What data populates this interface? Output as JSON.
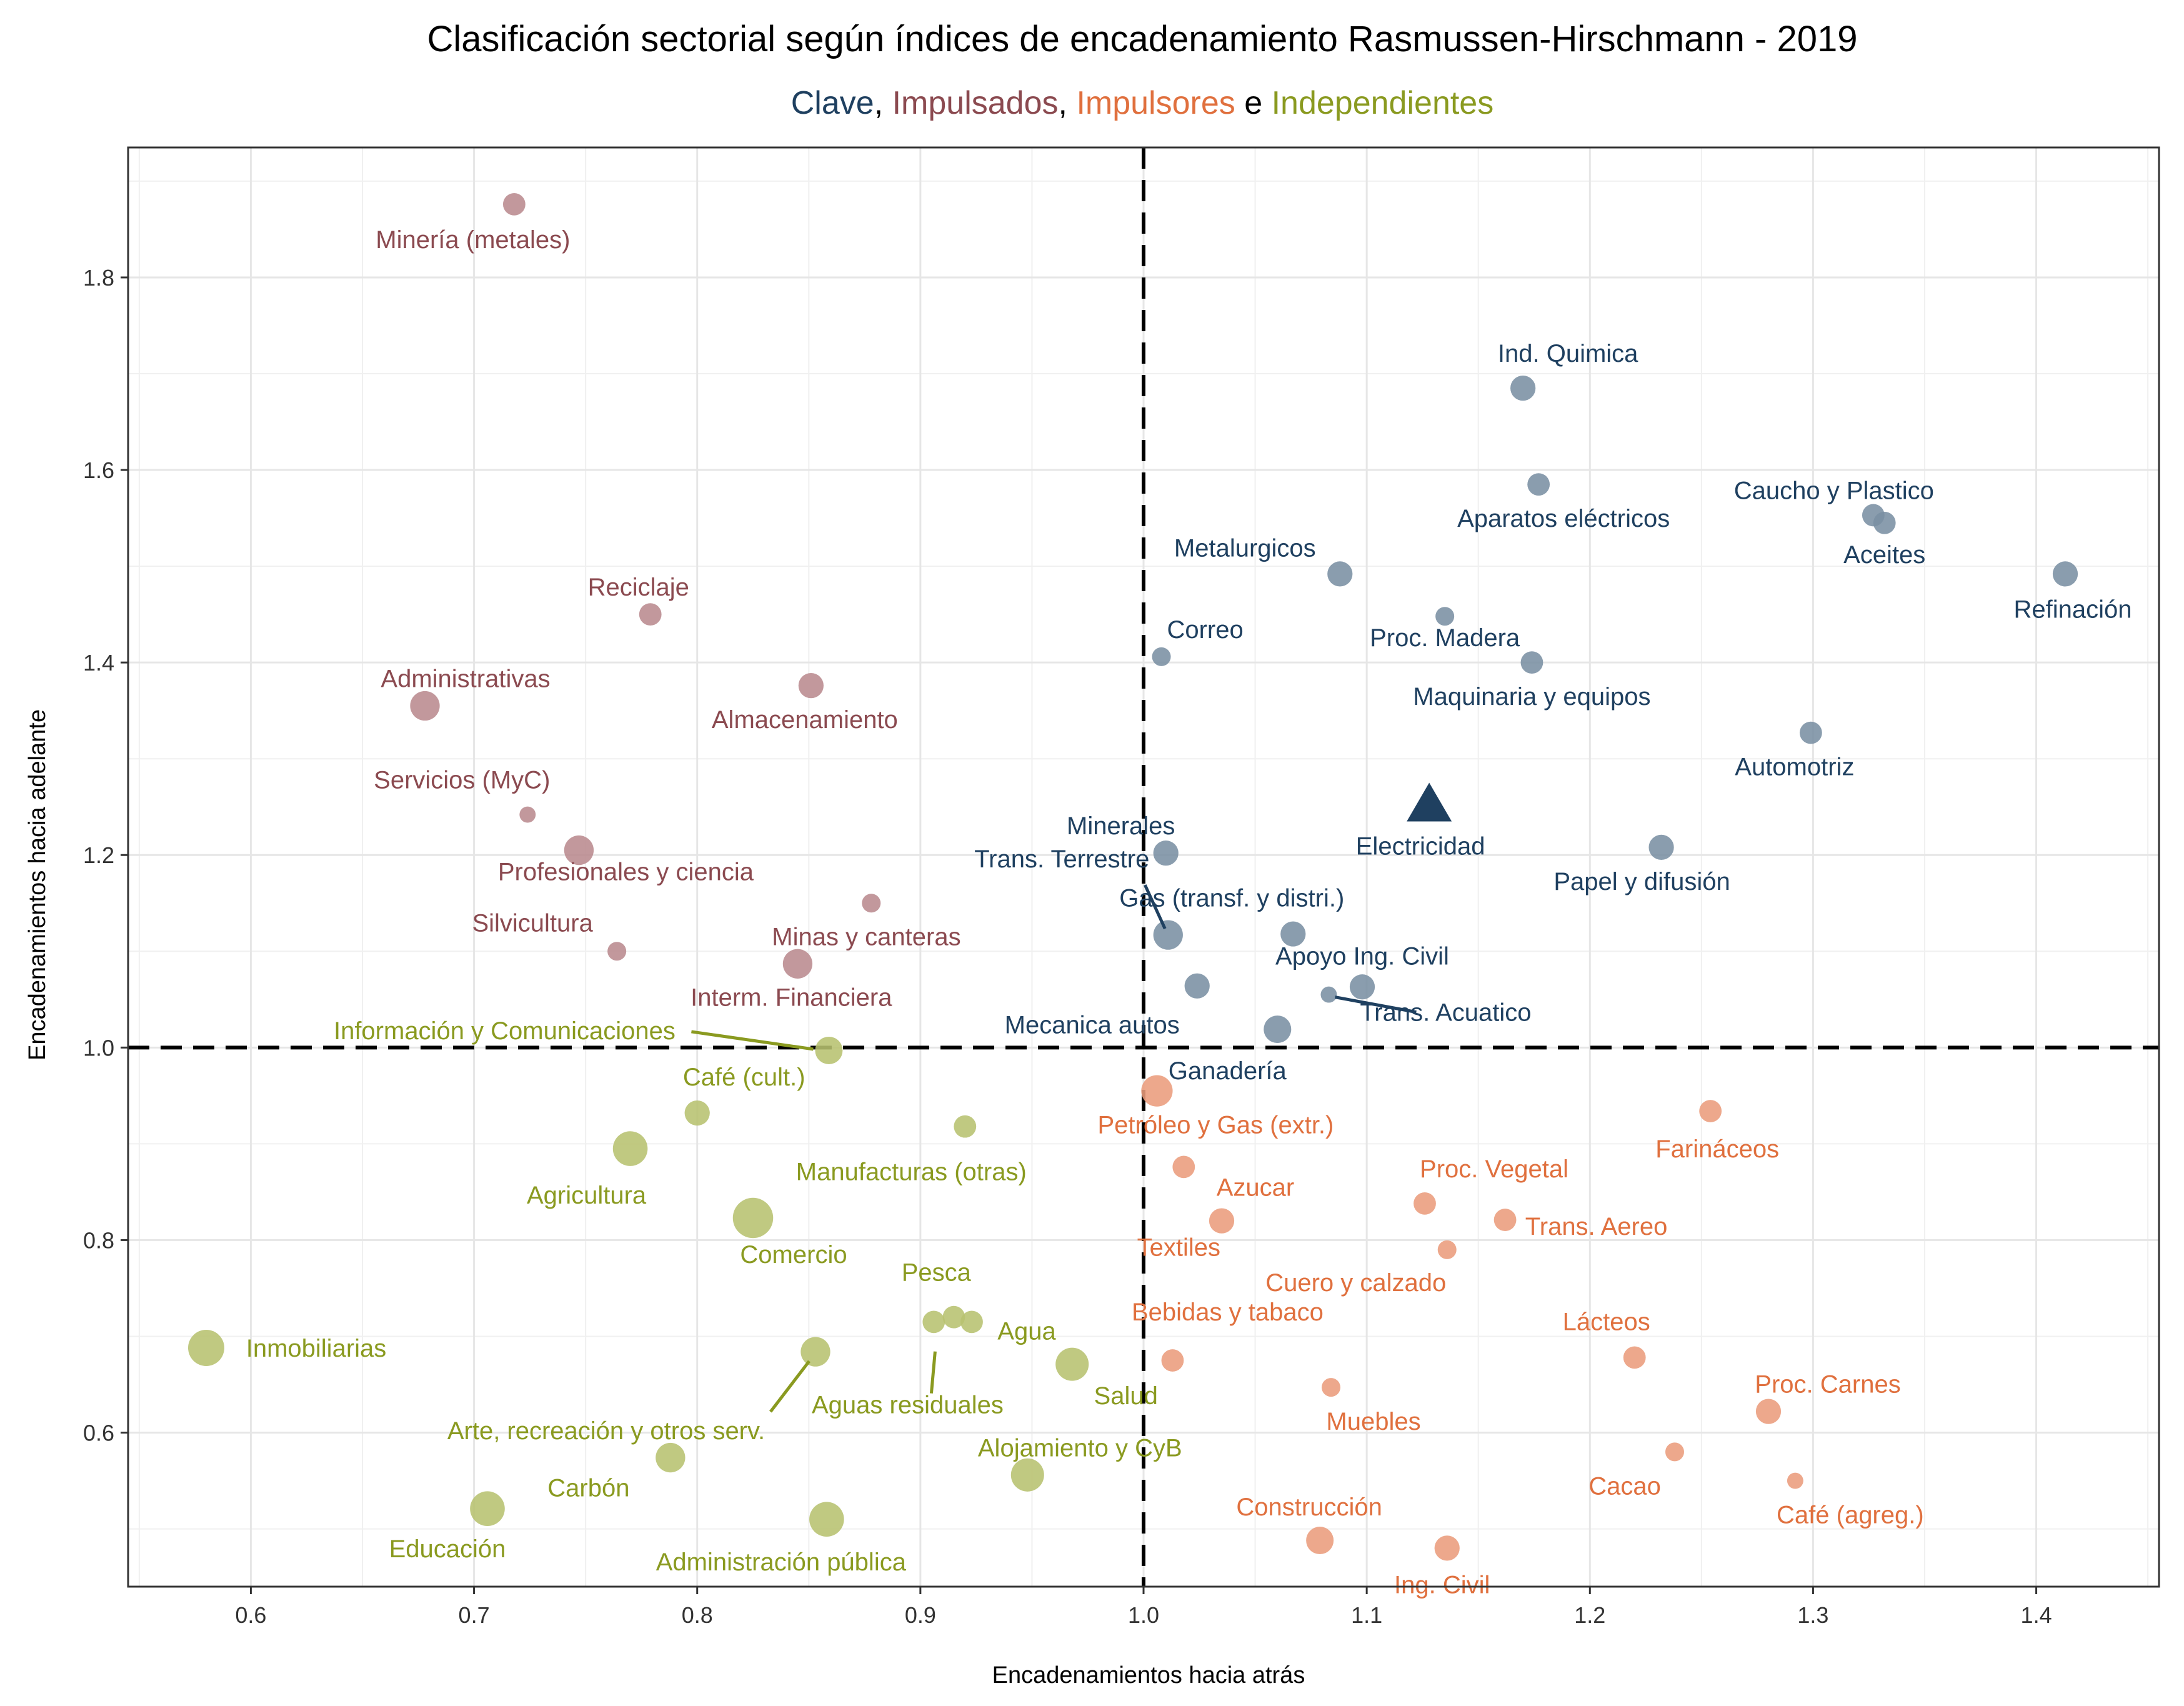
{
  "chart_data": {
    "type": "scatter",
    "title": "Clasificación sectorial según índices de encadenamiento Rasmussen-Hirschmann - 2019",
    "subtitle": [
      {
        "text": "Clave",
        "color": "#1f4060"
      },
      {
        "text": ", ",
        "color": "#000000"
      },
      {
        "text": "Impulsados",
        "color": "#8b4a50"
      },
      {
        "text": ", ",
        "color": "#000000"
      },
      {
        "text": "Impulsores",
        "color": "#e0703e"
      },
      {
        "text": " e ",
        "color": "#000000"
      },
      {
        "text": "Independientes",
        "color": "#8a9a20"
      }
    ],
    "xlabel": "Encadenamientos hacia atrás",
    "ylabel": "Encadenamientos hacia adelante",
    "xlim": [
      0.545,
      1.455
    ],
    "ylim": [
      0.44,
      1.935
    ],
    "xticks": [
      0.6,
      0.7,
      0.8,
      0.9,
      1.0,
      1.1,
      1.2,
      1.3,
      1.4
    ],
    "xtick_labels": [
      "0.6",
      "0.7",
      "0.8",
      "0.9",
      "1.0",
      "1.1",
      "1.2",
      "1.3",
      "1.4"
    ],
    "yticks": [
      0.6,
      0.8,
      1.0,
      1.2,
      1.4,
      1.6,
      1.8
    ],
    "ytick_labels": [
      "0.6",
      "0.8",
      "1.0",
      "1.2",
      "1.4",
      "1.6",
      "1.8"
    ],
    "reference_lines": {
      "x": 1.0,
      "y": 1.0,
      "style": "dashed"
    },
    "grid": true,
    "colors": {
      "Clave": {
        "text": "#1f4060",
        "point": "#7a8fa3",
        "marker": "#1f4060"
      },
      "Impulsados": {
        "text": "#8b4a50",
        "point": "#b98a8e"
      },
      "Impulsores": {
        "text": "#e0703e",
        "point": "#eb9c7c"
      },
      "Independientes": {
        "text": "#8a9a20",
        "point": "#b7c26f"
      }
    },
    "series": [
      {
        "name": "Clave",
        "points": [
          {
            "label": "Ind. Quimica",
            "x": 1.17,
            "y": 1.685,
            "size": 3
          },
          {
            "label": "Aparatos eléctricos",
            "x": 1.177,
            "y": 1.585,
            "size": 2
          },
          {
            "label": "Caucho y Plastico",
            "x": 1.327,
            "y": 1.553,
            "size": 2
          },
          {
            "label": "Aceites",
            "x": 1.332,
            "y": 1.545,
            "size": 2
          },
          {
            "label": "Refinación",
            "x": 1.413,
            "y": 1.492,
            "size": 3
          },
          {
            "label": "Metalurgicos",
            "x": 1.088,
            "y": 1.492,
            "size": 3
          },
          {
            "label": "Proc. Madera",
            "x": 1.135,
            "y": 1.448,
            "size": 1
          },
          {
            "label": "Maquinaria y equipos",
            "x": 1.174,
            "y": 1.4,
            "size": 2
          },
          {
            "label": "Correo",
            "x": 1.008,
            "y": 1.406,
            "size": 1
          },
          {
            "label": "Automotriz",
            "x": 1.299,
            "y": 1.327,
            "size": 2
          },
          {
            "label": "Electricidad",
            "x": 1.128,
            "y": 1.255,
            "size": 0,
            "marker": "triangle"
          },
          {
            "label": "Minerales",
            "x": 1.01,
            "y": 1.202,
            "size": 3
          },
          {
            "label": "Papel y difusión",
            "x": 1.232,
            "y": 1.208,
            "size": 3
          },
          {
            "label": "Trans. Terrestre",
            "x": 1.011,
            "y": 1.117,
            "size": 5
          },
          {
            "label": "Gas (transf. y distri.)",
            "x": 1.067,
            "y": 1.118,
            "size": 3
          },
          {
            "label": "Mecanica autos",
            "x": 1.024,
            "y": 1.064,
            "size": 3
          },
          {
            "label": "Apoyo Ing. Civil",
            "x": 1.098,
            "y": 1.063,
            "size": 3
          },
          {
            "label": "Trans. Acuatico",
            "x": 1.083,
            "y": 1.055,
            "size": 0.5
          },
          {
            "label": "Ganadería",
            "x": 1.06,
            "y": 1.019,
            "size": 4
          }
        ]
      },
      {
        "name": "Impulsados",
        "points": [
          {
            "label": "Minería (metales)",
            "x": 0.718,
            "y": 1.876,
            "size": 2
          },
          {
            "label": "Reciclaje",
            "x": 0.779,
            "y": 1.45,
            "size": 2
          },
          {
            "label": "Almacenamiento",
            "x": 0.851,
            "y": 1.376,
            "size": 3
          },
          {
            "label": "Administrativas",
            "x": 0.678,
            "y": 1.355,
            "size": 5
          },
          {
            "label": "Servicios (MyC)",
            "x": 0.724,
            "y": 1.242,
            "size": 0.5
          },
          {
            "label": "Profesionales y ciencia",
            "x": 0.747,
            "y": 1.205,
            "size": 5
          },
          {
            "label": "Interm. Financiera",
            "x": 0.878,
            "y": 1.15,
            "size": 1
          },
          {
            "label": "Silvicultura",
            "x": 0.764,
            "y": 1.1,
            "size": 1
          },
          {
            "label": "Minas y canteras",
            "x": 0.845,
            "y": 1.087,
            "size": 5
          }
        ]
      },
      {
        "name": "Impulsores",
        "points": [
          {
            "label": "Petróleo y Gas (extr.)",
            "x": 1.006,
            "y": 0.955,
            "size": 6
          },
          {
            "label": "Farináceos",
            "x": 1.254,
            "y": 0.934,
            "size": 2
          },
          {
            "label": "Textiles",
            "x": 1.018,
            "y": 0.876,
            "size": 2
          },
          {
            "label": "Proc. Vegetal",
            "x": 1.126,
            "y": 0.838,
            "size": 2
          },
          {
            "label": "Azucar",
            "x": 1.035,
            "y": 0.82,
            "size": 3
          },
          {
            "label": "Trans. Aereo",
            "x": 1.162,
            "y": 0.821,
            "size": 2
          },
          {
            "label": "Cuero y calzado",
            "x": 1.136,
            "y": 0.79,
            "size": 1
          },
          {
            "label": "Bebidas y tabaco",
            "x": 1.013,
            "y": 0.675,
            "size": 2
          },
          {
            "label": "Lácteos",
            "x": 1.22,
            "y": 0.678,
            "size": 2
          },
          {
            "label": "Muebles",
            "x": 1.084,
            "y": 0.647,
            "size": 1
          },
          {
            "label": "Proc. Carnes",
            "x": 1.28,
            "y": 0.622,
            "size": 3
          },
          {
            "label": "Cacao",
            "x": 1.238,
            "y": 0.58,
            "size": 1
          },
          {
            "label": "Café (agreg.)",
            "x": 1.292,
            "y": 0.55,
            "size": 0.5
          },
          {
            "label": "Construcción",
            "x": 1.079,
            "y": 0.488,
            "size": 4
          },
          {
            "label": "Ing. Civil",
            "x": 1.136,
            "y": 0.48,
            "size": 3
          }
        ]
      },
      {
        "name": "Independientes",
        "points": [
          {
            "label": "Información y Comunicaciones",
            "x": 0.859,
            "y": 0.997,
            "size": 4
          },
          {
            "label": "Café (cult.)",
            "x": 0.8,
            "y": 0.932,
            "size": 3
          },
          {
            "label": "Manufacturas (otras)",
            "x": 0.92,
            "y": 0.918,
            "size": 2
          },
          {
            "label": "Agricultura",
            "x": 0.77,
            "y": 0.895,
            "size": 8
          },
          {
            "label": "Comercio",
            "x": 0.825,
            "y": 0.823,
            "size": 12
          },
          {
            "label": "Pesca",
            "x": 0.906,
            "y": 0.715,
            "size": 2
          },
          {
            "label": "Aguas residuales",
            "x": 0.915,
            "y": 0.72,
            "size": 2
          },
          {
            "label": "Agua",
            "x": 0.923,
            "y": 0.715,
            "size": 2
          },
          {
            "label": "Inmobiliarias",
            "x": 0.58,
            "y": 0.688,
            "size": 9
          },
          {
            "label": "Arte, recreación y otros serv.",
            "x": 0.853,
            "y": 0.684,
            "size": 5
          },
          {
            "label": "Salud",
            "x": 0.968,
            "y": 0.671,
            "size": 7
          },
          {
            "label": "Carbón",
            "x": 0.788,
            "y": 0.574,
            "size": 5
          },
          {
            "label": "Alojamiento y CyB",
            "x": 0.948,
            "y": 0.556,
            "size": 7
          },
          {
            "label": "Educación",
            "x": 0.706,
            "y": 0.521,
            "size": 8
          },
          {
            "label": "Administración pública",
            "x": 0.858,
            "y": 0.51,
            "size": 8
          }
        ]
      }
    ]
  }
}
